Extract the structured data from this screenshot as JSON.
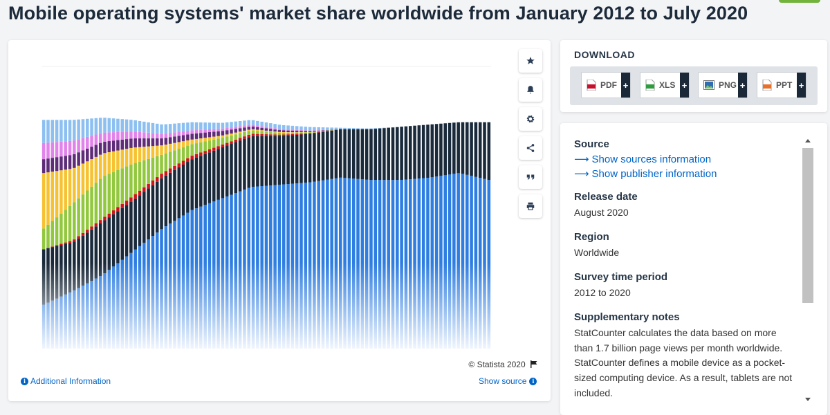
{
  "page_title": "Mobile operating systems' market share worldwide from January 2012 to July 2020",
  "toolbar": [
    {
      "name": "star-button",
      "icon": "star-icon"
    },
    {
      "name": "bell-button",
      "icon": "bell-icon"
    },
    {
      "name": "settings-button",
      "icon": "gear-icon"
    },
    {
      "name": "share-button",
      "icon": "share-icon"
    },
    {
      "name": "cite-button",
      "icon": "quote-icon"
    },
    {
      "name": "print-button",
      "icon": "print-icon"
    }
  ],
  "chart": {
    "copyright": "© Statista 2020",
    "additional_info": "Additional Information",
    "show_source": "Show source"
  },
  "chart_data": {
    "type": "bar",
    "stacked": true,
    "period": [
      "January 2012",
      "July 2020"
    ],
    "bar_count": 103,
    "ylim": [
      0,
      100
    ],
    "series": [
      {
        "color": "#2e7de1",
        "values": [
          19,
          25,
          32,
          42,
          52,
          60,
          65,
          70,
          71,
          72,
          74,
          73,
          73,
          74,
          76,
          73
        ]
      },
      {
        "color": "#1a2a3b",
        "values": [
          24,
          21,
          23,
          22,
          22,
          22,
          22,
          22,
          21,
          21,
          21,
          22,
          23,
          23,
          22,
          25
        ]
      },
      {
        "color": "#d3131a",
        "values": [
          0,
          1,
          1.5,
          2,
          2,
          1.5,
          1.2,
          1,
          0.6,
          0.3,
          0,
          0,
          0,
          0,
          0,
          0
        ]
      },
      {
        "color": "#92c83e",
        "values": [
          9,
          16,
          18,
          14,
          8,
          5,
          3,
          1.5,
          0.8,
          0.4,
          0,
          0,
          0,
          0,
          0,
          0
        ]
      },
      {
        "color": "#f6c232",
        "values": [
          24,
          15,
          10,
          7,
          4,
          2,
          1,
          0.5,
          0.3,
          0,
          0,
          0,
          0,
          0,
          0,
          0
        ]
      },
      {
        "color": "#5e2c78",
        "values": [
          6,
          6,
          5,
          4,
          3,
          2.5,
          2,
          1.2,
          0.8,
          0.4,
          0,
          0,
          0,
          0,
          0,
          0
        ]
      },
      {
        "color": "#e183ea",
        "values": [
          7,
          6,
          4,
          3,
          2,
          1.5,
          1,
          0.8,
          0.5,
          0.3,
          0,
          0,
          0,
          0,
          0,
          0
        ]
      },
      {
        "color": "#8dc0f1",
        "values": [
          10,
          9,
          6.5,
          5,
          4,
          3.5,
          2.5,
          2,
          1.8,
          1.5,
          0.6,
          0.3,
          0,
          0,
          0,
          0
        ]
      }
    ],
    "grid": true
  },
  "download": {
    "title": "DOWNLOAD",
    "buttons": [
      {
        "label": "PDF",
        "icon": "pdf-icon",
        "color": "#c8102e"
      },
      {
        "label": "XLS",
        "icon": "xls-icon",
        "color": "#2e9c3f"
      },
      {
        "label": "PNG",
        "icon": "png-icon",
        "color": "#2e6db4"
      },
      {
        "label": "PPT",
        "icon": "ppt-icon",
        "color": "#e8702a"
      }
    ]
  },
  "info": {
    "source_head": "Source",
    "show_sources": "Show sources information",
    "show_publisher": "Show publisher information",
    "release_head": "Release date",
    "release_val": "August 2020",
    "region_head": "Region",
    "region_val": "Worldwide",
    "survey_head": "Survey time period",
    "survey_val": "2012 to 2020",
    "notes_head": "Supplementary notes",
    "notes_val": "StatCounter calculates the data based on more than 1.7 billion page views per month worldwide. StatCounter defines a mobile device as a pocket-sized computing device. As a result, tablets are not included."
  }
}
